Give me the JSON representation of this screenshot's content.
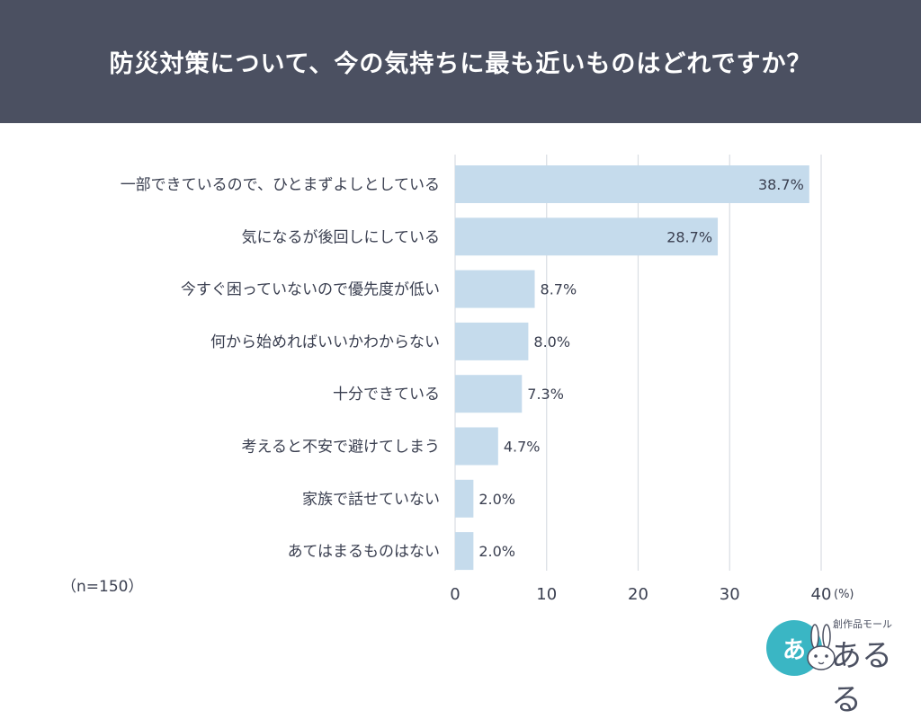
{
  "header": {
    "title": "防災対策について、今の気持ちに最も近いものはどれですか？"
  },
  "note": "（n=150）",
  "logo": {
    "circle_text": "あ",
    "tagline": "創作品モール",
    "name": "あるる"
  },
  "colors": {
    "header_bg": "#4b5061",
    "bar": "#c5dbec",
    "grid": "#d9dde3",
    "text": "#3a3f50",
    "logo_accent": "#3ab6c4"
  },
  "chart_data": {
    "type": "bar",
    "orientation": "horizontal",
    "categories": [
      "一部できているので、ひとまずよしとしている",
      "気になるが後回しにしている",
      "今すぐ困っていないので優先度が低い",
      "何から始めればいいかわからない",
      "十分できている",
      "考えると不安で避けてしまう",
      "家族で話せていない",
      "あてはまるものはない"
    ],
    "values": [
      38.7,
      28.7,
      8.7,
      8.0,
      7.3,
      4.7,
      2.0,
      2.0
    ],
    "value_labels": [
      "38.7%",
      "28.7%",
      "8.7%",
      "8.0%",
      "7.3%",
      "4.7%",
      "2.0%",
      "2.0%"
    ],
    "xlim": [
      0,
      40
    ],
    "xticks": [
      0,
      10,
      20,
      30,
      40
    ],
    "xtick_labels": [
      "0",
      "10",
      "20",
      "30",
      "40"
    ],
    "x_unit": "(%)",
    "grid": true
  }
}
